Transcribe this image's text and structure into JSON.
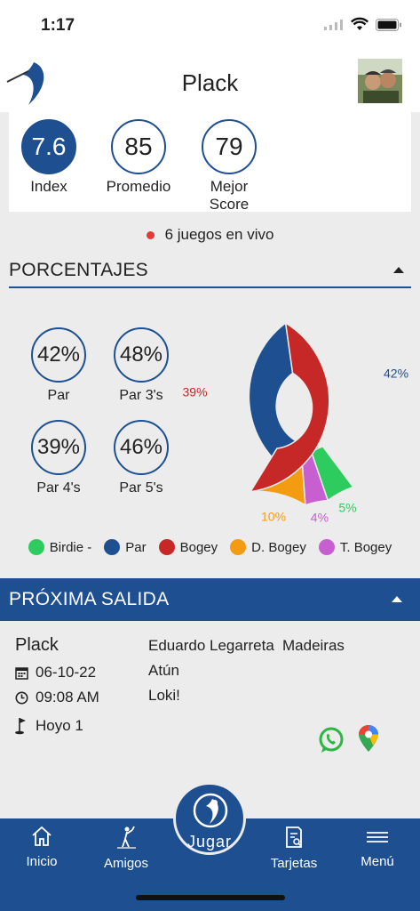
{
  "status_bar": {
    "time": "1:17"
  },
  "header": {
    "title": "Plack",
    "logo_icon": "golfer-logo-icon",
    "avatar_icon": "user-avatar"
  },
  "stats": [
    {
      "value": "7.6",
      "label": "Index",
      "filled": true
    },
    {
      "value": "85",
      "label": "Promedio",
      "filled": false
    },
    {
      "value": "79",
      "label": "Mejor Score",
      "filled": false
    }
  ],
  "live": {
    "text": "6 juegos en vivo"
  },
  "percentages": {
    "title": "PORCENTAJES",
    "items": [
      {
        "value": "42%",
        "label": "Par"
      },
      {
        "value": "48%",
        "label": "Par 3's"
      },
      {
        "value": "39%",
        "label": "Par 4's"
      },
      {
        "value": "46%",
        "label": "Par 5's"
      }
    ]
  },
  "chart_data": {
    "type": "pie",
    "donut": true,
    "slices": [
      {
        "name": "Par",
        "value": 42,
        "label": "42%",
        "color": "#1d4f91"
      },
      {
        "name": "Birdie -",
        "value": 5,
        "label": "5%",
        "color": "#2ecc5f"
      },
      {
        "name": "T. Bogey",
        "value": 4,
        "label": "4%",
        "color": "#c75fd1"
      },
      {
        "name": "D. Bogey",
        "value": 10,
        "label": "10%",
        "color": "#f39c12"
      },
      {
        "name": "Bogey",
        "value": 39,
        "label": "39%",
        "color": "#c62828"
      }
    ],
    "legend": [
      {
        "name": "Birdie -",
        "color": "#2ecc5f"
      },
      {
        "name": "Par",
        "color": "#1d4f91"
      },
      {
        "name": "Bogey",
        "color": "#c62828"
      },
      {
        "name": "D. Bogey",
        "color": "#f39c12"
      },
      {
        "name": "T. Bogey",
        "color": "#c75fd1"
      }
    ],
    "legend_position": "bottom"
  },
  "next_tee": {
    "title": "PRÓXIMA SALIDA",
    "player": "Plack",
    "date": "06-10-22",
    "time": "09:08 AM",
    "hole": "Hoyo 1",
    "partners": [
      "Eduardo Legarreta",
      "Atún",
      "Loki!"
    ],
    "course": "Madeiras"
  },
  "tabs": [
    {
      "label": "Inicio",
      "icon": "home-icon"
    },
    {
      "label": "Amigos",
      "icon": "golfer-icon"
    },
    {
      "label": "Jugar",
      "icon": "golf-ball-icon"
    },
    {
      "label": "Tarjetas",
      "icon": "scorecard-icon"
    },
    {
      "label": "Menú",
      "icon": "hamburger-menu-icon"
    }
  ],
  "colors": {
    "primary": "#1d4f91",
    "live_dot": "#e53935"
  }
}
